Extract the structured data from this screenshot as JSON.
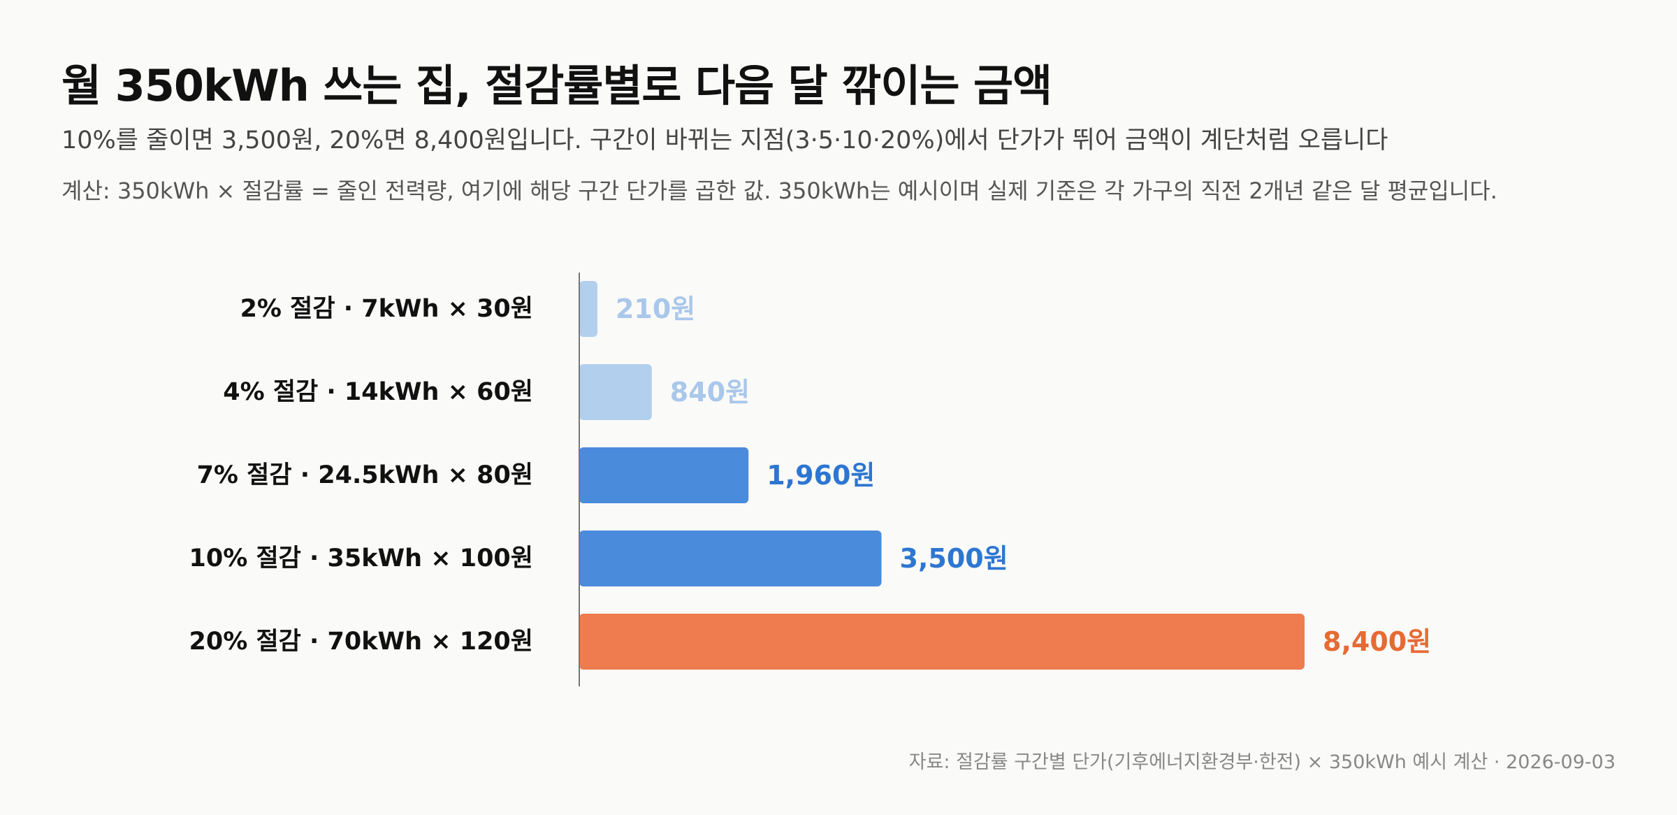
{
  "title": "월 350kWh 쓰는 집, 절감률별로 다음 달 깎이는 금액",
  "subtitle": "10%를 줄이면 3,500원, 20%면 8,400원입니다. 구간이 바뀌는 지점(3·5·10·20%)에서 단가가 뛰어 금액이 계단처럼 오릅니다",
  "note": "계산: 350kWh × 절감률 = 줄인 전력량, 여기에 해당 구간 단가를 곱한 값. 350kWh는 예시이며 실제 기준은 각 가구의 직전 2개년 같은 달 평균입니다.",
  "source": "자료: 절감률 구간별 단가(기후에너지환경부·한전) × 350kWh 예시 계산 · 2026-09-03",
  "chart_data": {
    "type": "bar",
    "orientation": "horizontal",
    "categories": [
      "2% 절감 · 7kWh × 30원",
      "4% 절감 · 14kWh × 60원",
      "7% 절감 · 24.5kWh × 80원",
      "10% 절감 · 35kWh × 100원",
      "20% 절감 · 70kWh × 120원"
    ],
    "values": [
      210,
      840,
      1960,
      3500,
      8400
    ],
    "value_labels": [
      "210원",
      "840원",
      "1,960원",
      "3,500원",
      "8,400원"
    ],
    "colors": [
      "#b3cfee",
      "#b3cfee",
      "#4a8bdc",
      "#4a8bdc",
      "#ee7c4e"
    ],
    "label_colors": [
      "#a9c7ea",
      "#a9c7ea",
      "#2d76d2",
      "#2d76d2",
      "#e66a34"
    ],
    "xlim": [
      0,
      8400
    ],
    "grid": false,
    "legend": "none"
  }
}
